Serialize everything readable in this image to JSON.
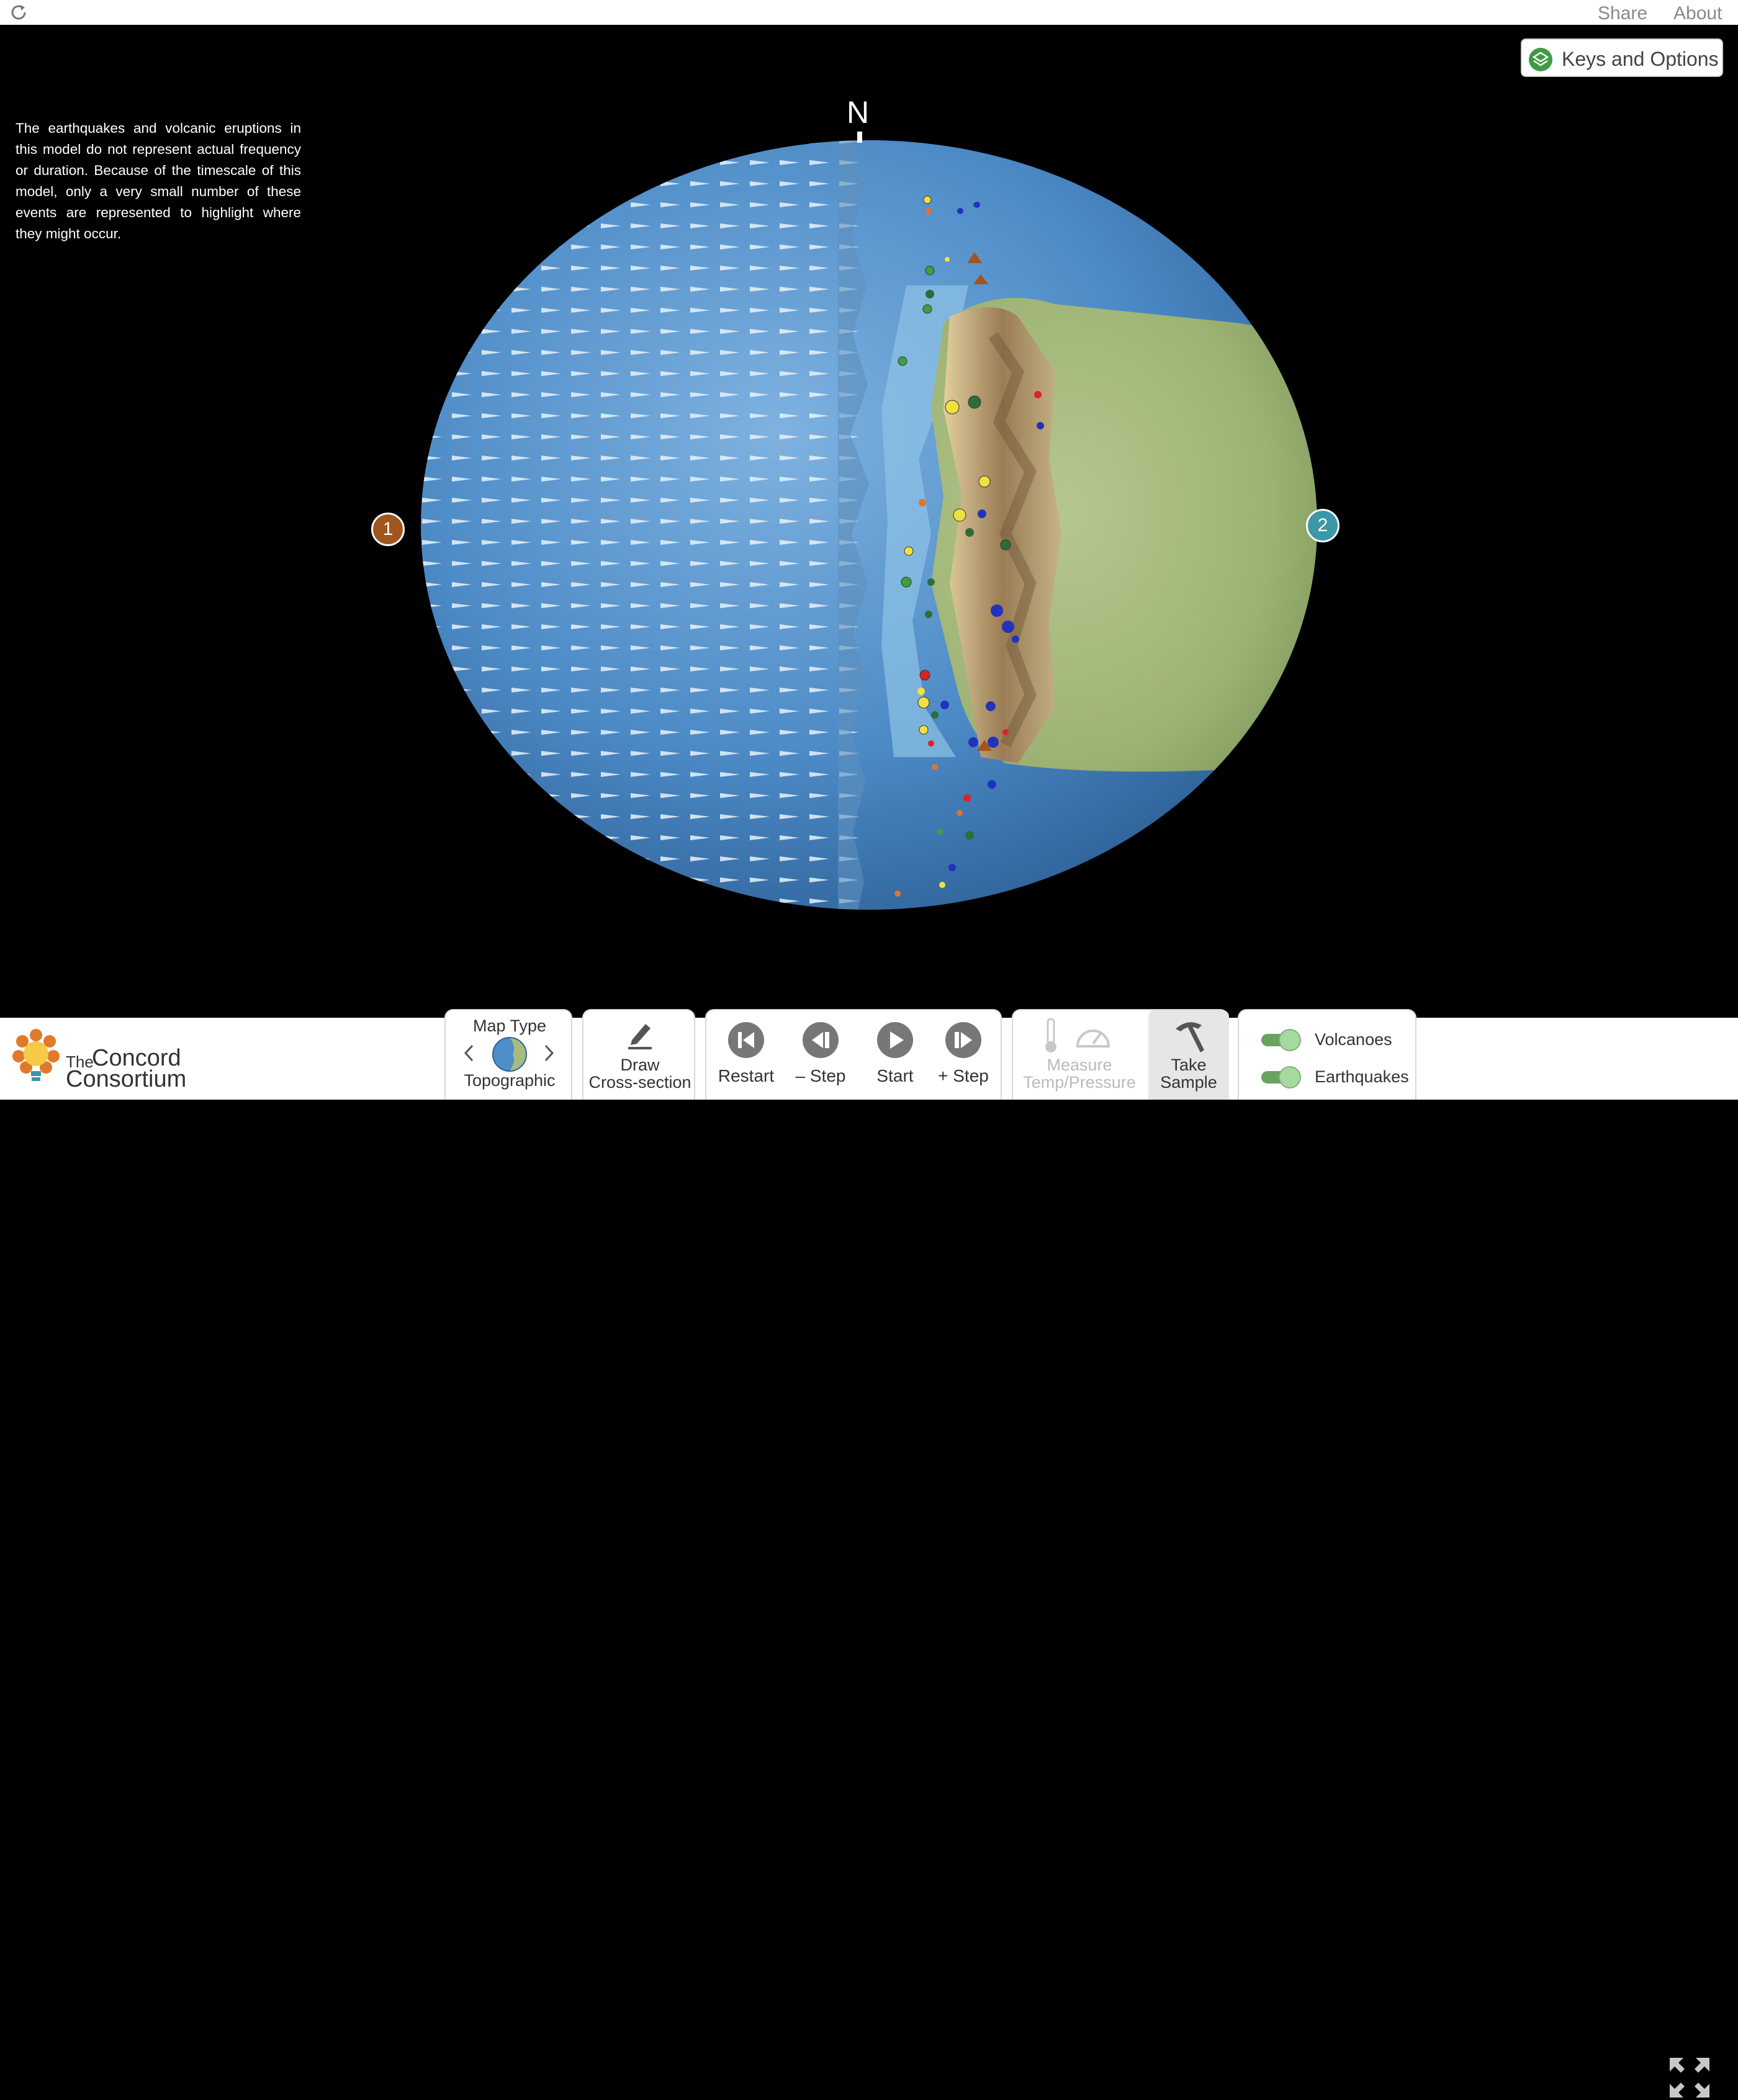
{
  "topbar": {
    "share": "Share",
    "about": "About"
  },
  "notice": "The earthquakes and volcanic eruptions in this model do not represent actual frequency or duration. Because of the timescale of this model, only a very small number of these events are represented to highlight where they might occur.",
  "keys_button": "Keys and Options",
  "globe": {
    "north_label": "N",
    "markers": [
      {
        "label": "1",
        "color": "#a0561c"
      },
      {
        "label": "2",
        "color": "#3d97a8"
      }
    ],
    "colors": {
      "ocean": "#4f8fc9",
      "land": "#a7bc82",
      "mountains": "#8a6e46"
    }
  },
  "logo": {
    "the": "The",
    "line1": "Concord",
    "line2": "Consortium"
  },
  "controls": {
    "map_type": {
      "title": "Map Type",
      "value": "Topographic"
    },
    "draw": {
      "line1": "Draw",
      "line2": "Cross-section"
    },
    "restart": "Restart",
    "step_back": "– Step",
    "start": "Start",
    "step_forward": "+ Step",
    "measure": {
      "line1": "Measure",
      "line2": "Temp/Pressure",
      "enabled": false
    },
    "take_sample": {
      "line1": "Take",
      "line2": "Sample"
    },
    "toggles": [
      {
        "label": "Volcanoes",
        "on": true
      },
      {
        "label": "Earthquakes",
        "on": true
      }
    ]
  }
}
